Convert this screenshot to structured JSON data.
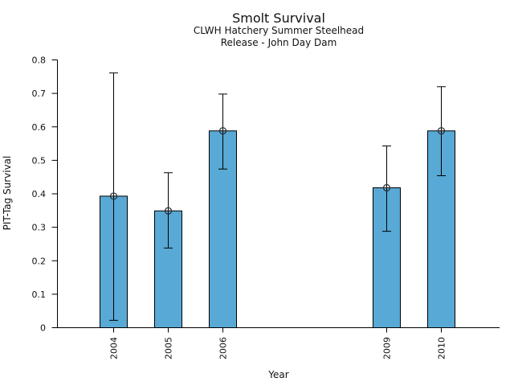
{
  "header": {
    "title": "Smolt Survival",
    "subtitle_line1": "CLWH Hatchery Summer Steelhead",
    "subtitle_line2": "Release - John Day Dam"
  },
  "chart_data": {
    "type": "bar",
    "title": "Smolt Survival",
    "subtitle": [
      "CLWH Hatchery Summer Steelhead",
      "Release - John Day Dam"
    ],
    "xlabel": "Year",
    "ylabel": "PIT-Tag Survival",
    "categories": [
      2004,
      2005,
      2006,
      2009,
      2010
    ],
    "values": [
      0.393,
      0.349,
      0.588,
      0.418,
      0.588
    ],
    "error_low": [
      0.022,
      0.238,
      0.474,
      0.288,
      0.454
    ],
    "error_high": [
      0.761,
      0.463,
      0.698,
      0.543,
      0.72
    ],
    "ylim": [
      0,
      0.8
    ],
    "yticks": [
      0,
      0.1,
      0.2,
      0.3,
      0.4,
      0.5,
      0.6,
      0.7,
      0.8
    ],
    "ytick_labels": [
      "0",
      "0.1",
      "0.2",
      "0.3",
      "0.4",
      "0.5",
      "0.6",
      "0.7",
      "0.8"
    ],
    "x_year_range": [
      2003,
      2011.1
    ],
    "x_gap_years": [
      2007,
      2008
    ],
    "xtick_label_rotation_deg": 90,
    "grid": false,
    "legend": "none",
    "marker": "circle-plus",
    "colors": {
      "bar_fill": "#58a9d5",
      "bar_edge": "#000000",
      "error_bar": "#000000",
      "marker_stroke": "#2b2b2b",
      "axis": "#000000",
      "text": "#111111",
      "background": "#ffffff"
    }
  }
}
